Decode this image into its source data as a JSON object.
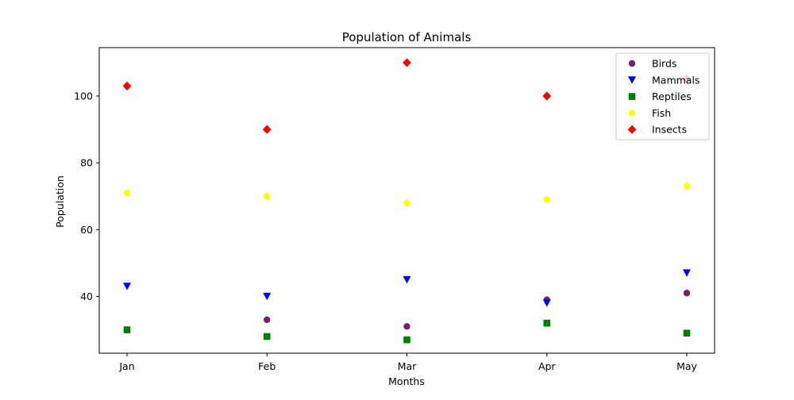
{
  "chart_data": {
    "type": "scatter",
    "title": "Population of Animals",
    "xlabel": "Months",
    "ylabel": "Population",
    "categories": [
      "Jan",
      "Feb",
      "Mar",
      "Apr",
      "May"
    ],
    "yticks": [
      40,
      60,
      80,
      100
    ],
    "ylim": [
      23,
      114.5
    ],
    "grid": false,
    "legend_position": "top-right",
    "series": [
      {
        "name": "Birds",
        "marker": "circle",
        "color": "#7a1f6e",
        "values": [
          30,
          33,
          31,
          39,
          41
        ]
      },
      {
        "name": "Mammals",
        "marker": "triangle-down",
        "color": "#0000ff",
        "values": [
          43,
          40,
          45,
          38,
          47
        ]
      },
      {
        "name": "Reptiles",
        "marker": "square",
        "color": "#008000",
        "values": [
          30,
          28,
          27,
          32,
          29
        ]
      },
      {
        "name": "Fish",
        "marker": "pentagon",
        "color": "#ffff00",
        "values": [
          71,
          70,
          68,
          69,
          73
        ]
      },
      {
        "name": "Insects",
        "marker": "diamond",
        "color": "#ff0000",
        "values": [
          103,
          90,
          110,
          100,
          105
        ]
      }
    ]
  }
}
